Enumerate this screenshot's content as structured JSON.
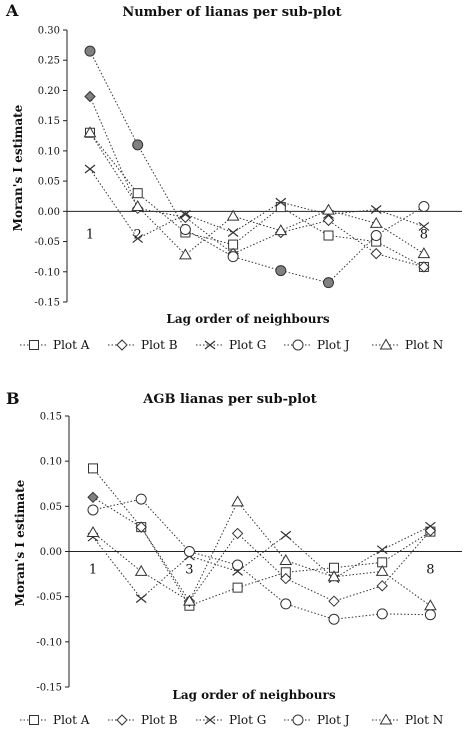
{
  "chart_data": [
    {
      "type": "line",
      "panel": "A",
      "title": "Number of lianas per sub-plot",
      "xlabel": "Lag order of neighbours",
      "ylabel": "Moran's I estimate",
      "x": [
        1,
        2,
        3,
        4,
        5,
        6,
        7,
        8
      ],
      "x_tick_labels": [
        "1",
        "2",
        "",
        "",
        "",
        "",
        "",
        "8"
      ],
      "ylim": [
        -0.15,
        0.3
      ],
      "yticks": [
        "-0.15",
        "-0.10",
        "-0.05",
        "0.00",
        "0.05",
        "0.10",
        "0.15",
        "0.20",
        "0.25",
        "0.30"
      ],
      "legend_position": "bottom",
      "series": [
        {
          "name": "Plot A",
          "marker": "square",
          "values": [
            0.13,
            0.03,
            -0.035,
            -0.055,
            0.007,
            -0.04,
            -0.05,
            -0.092
          ]
        },
        {
          "name": "Plot B",
          "marker": "diamond",
          "values": [
            0.19,
            0.005,
            -0.01,
            -0.07,
            -0.035,
            -0.015,
            -0.07,
            -0.092
          ]
        },
        {
          "name": "Plot G",
          "marker": "x",
          "values": [
            0.07,
            -0.045,
            -0.005,
            -0.035,
            0.015,
            -0.005,
            0.003,
            -0.025
          ]
        },
        {
          "name": "Plot J",
          "marker": "circle",
          "values": [
            0.265,
            0.11,
            -0.03,
            -0.075,
            -0.098,
            -0.118,
            -0.04,
            0.008
          ]
        },
        {
          "name": "Plot N",
          "marker": "triangle",
          "values": [
            0.13,
            0.008,
            -0.072,
            -0.008,
            -0.032,
            0.002,
            -0.02,
            -0.07
          ]
        }
      ],
      "highlighted": [
        {
          "series": "Plot B",
          "points": [
            0
          ]
        },
        {
          "series": "Plot J",
          "points": [
            0,
            1,
            4,
            5
          ]
        }
      ]
    },
    {
      "type": "line",
      "panel": "B",
      "title": "AGB lianas per sub-plot",
      "xlabel": "Lag order of neighbours",
      "ylabel": "Moran's I estimate",
      "x": [
        1,
        2,
        3,
        4,
        5,
        6,
        7,
        8
      ],
      "x_tick_labels": [
        "1",
        "",
        "3",
        "",
        "",
        "",
        "",
        "8"
      ],
      "ylim": [
        -0.15,
        0.15
      ],
      "yticks": [
        "-0.15",
        "-0.10",
        "-0.05",
        "0.00",
        "0.05",
        "0.10",
        "0.15"
      ],
      "legend_position": "bottom",
      "series": [
        {
          "name": "Plot A",
          "marker": "square",
          "values": [
            0.092,
            0.027,
            -0.06,
            -0.04,
            -0.023,
            -0.018,
            -0.012,
            0.022
          ]
        },
        {
          "name": "Plot B",
          "marker": "diamond",
          "values": [
            0.06,
            0.027,
            -0.055,
            0.02,
            -0.03,
            -0.055,
            -0.038,
            0.023
          ]
        },
        {
          "name": "Plot G",
          "marker": "x",
          "values": [
            0.016,
            -0.052,
            -0.005,
            -0.022,
            0.018,
            -0.03,
            0.002,
            0.028
          ]
        },
        {
          "name": "Plot J",
          "marker": "circle",
          "values": [
            0.046,
            0.058,
            0.0,
            -0.015,
            -0.058,
            -0.075,
            -0.069,
            -0.07
          ]
        },
        {
          "name": "Plot N",
          "marker": "triangle",
          "values": [
            0.021,
            -0.022,
            -0.055,
            0.055,
            -0.01,
            -0.028,
            -0.022,
            -0.06
          ]
        }
      ],
      "highlighted": [
        {
          "series": "Plot B",
          "points": [
            0
          ]
        }
      ]
    }
  ]
}
